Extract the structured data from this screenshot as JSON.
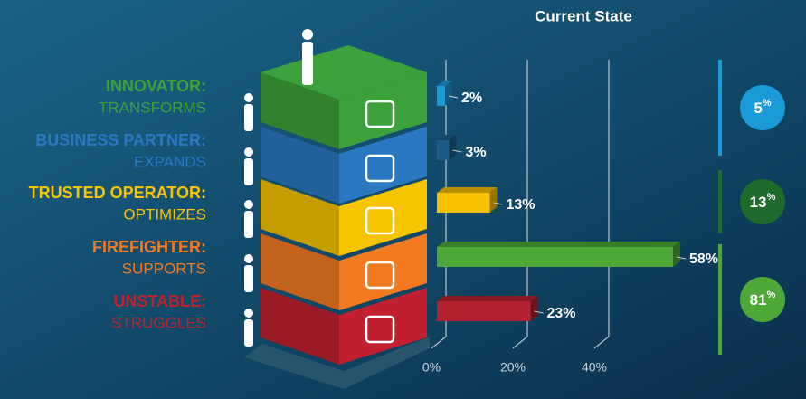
{
  "chart_data": {
    "type": "bar",
    "orientation": "horizontal",
    "title": "Current State",
    "categories": [
      null,
      null,
      null,
      null,
      null
    ],
    "values": [
      2,
      3,
      13,
      58,
      23
    ],
    "value_labels": [
      "2%",
      "3%",
      "13%",
      "58%",
      "23%"
    ],
    "colors": [
      "#1b9ad8",
      "#1d5c86",
      "#f7c100",
      "#4ea837",
      "#b3222f"
    ],
    "xlim": [
      0,
      60
    ],
    "xticks": [
      {
        "value": 0,
        "label": "0%"
      },
      {
        "value": 20,
        "label": "20%"
      },
      {
        "value": 40,
        "label": "40%"
      }
    ],
    "grid": true
  },
  "levels": [
    {
      "title": "INNOVATOR:",
      "subtitle": "TRANSFORMS",
      "color": "#3da13b"
    },
    {
      "title": "BUSINESS PARTNER:",
      "subtitle": "EXPANDS",
      "color": "#2b78c2"
    },
    {
      "title": "TRUSTED OPERATOR:",
      "subtitle": "OPTIMIZES",
      "color": "#f7c400"
    },
    {
      "title": "FIREFIGHTER:",
      "subtitle": "SUPPORTS",
      "color": "#f27b22"
    },
    {
      "title": "UNSTABLE:",
      "subtitle": "STRUGGLES",
      "color": "#c1202f"
    }
  ],
  "summary": [
    {
      "value": "5",
      "unit": "%",
      "color": "#1b9ad8"
    },
    {
      "value": "13",
      "unit": "%",
      "color": "#1e6b2b"
    },
    {
      "value": "81",
      "unit": "%",
      "color": "#4ea837"
    }
  ]
}
